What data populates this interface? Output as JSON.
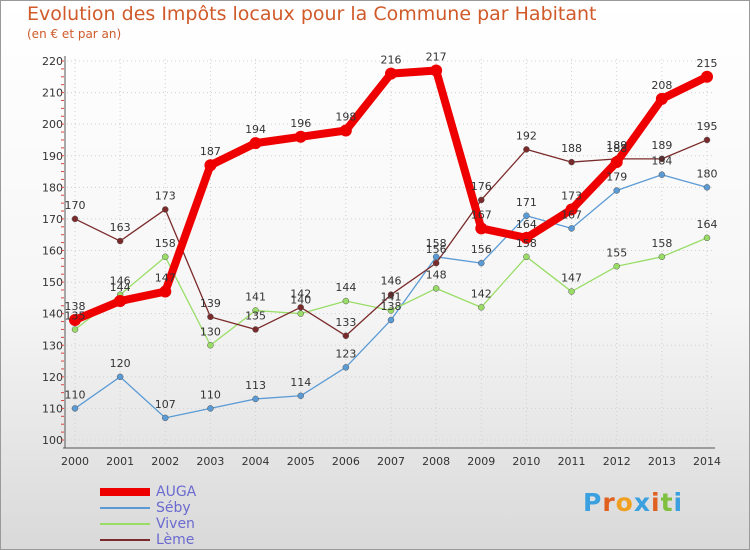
{
  "chart_data": {
    "type": "line",
    "title": "Evolution des Impôts locaux pour la Commune par Habitant",
    "subtitle": "(en € et par an)",
    "xlabel": "",
    "ylabel": "",
    "x": [
      "2000",
      "2001",
      "2002",
      "2003",
      "2004",
      "2005",
      "2006",
      "2007",
      "2008",
      "2009",
      "2010",
      "2011",
      "2012",
      "2013",
      "2014"
    ],
    "ylim": [
      100,
      220
    ],
    "yticks": [
      "100",
      "110",
      "120",
      "130",
      "140",
      "150",
      "160",
      "170",
      "180",
      "190",
      "200",
      "210",
      "220"
    ],
    "grid": true,
    "legend_position": "bottom-left",
    "series": [
      {
        "name": "AUGA",
        "color": "#ee0000",
        "values": [
          138,
          144,
          147,
          187,
          194,
          196,
          198,
          216,
          217,
          167,
          164,
          173,
          188,
          208,
          215
        ]
      },
      {
        "name": "Séby",
        "color": "#5b9bd5",
        "values": [
          110,
          120,
          107,
          110,
          113,
          114,
          123,
          138,
          158,
          156,
          171,
          167,
          179,
          184,
          180
        ]
      },
      {
        "name": "Viven",
        "color": "#99dd66",
        "values": [
          135,
          146,
          158,
          130,
          141,
          140,
          144,
          141,
          148,
          142,
          158,
          147,
          155,
          158,
          164
        ]
      },
      {
        "name": "Lème",
        "color": "#7a2a2a",
        "values": [
          170,
          163,
          173,
          139,
          135,
          142,
          133,
          146,
          156,
          176,
          192,
          188,
          189,
          189,
          195
        ]
      }
    ]
  },
  "logo": {
    "letters": [
      "P",
      "r",
      "o",
      "x",
      "i",
      "t",
      "i"
    ],
    "colors": [
      "#3aa0e0",
      "#e06020",
      "#f0a020",
      "#3aa0e0",
      "#e06020",
      "#80c040",
      "#3aa0e0"
    ]
  }
}
